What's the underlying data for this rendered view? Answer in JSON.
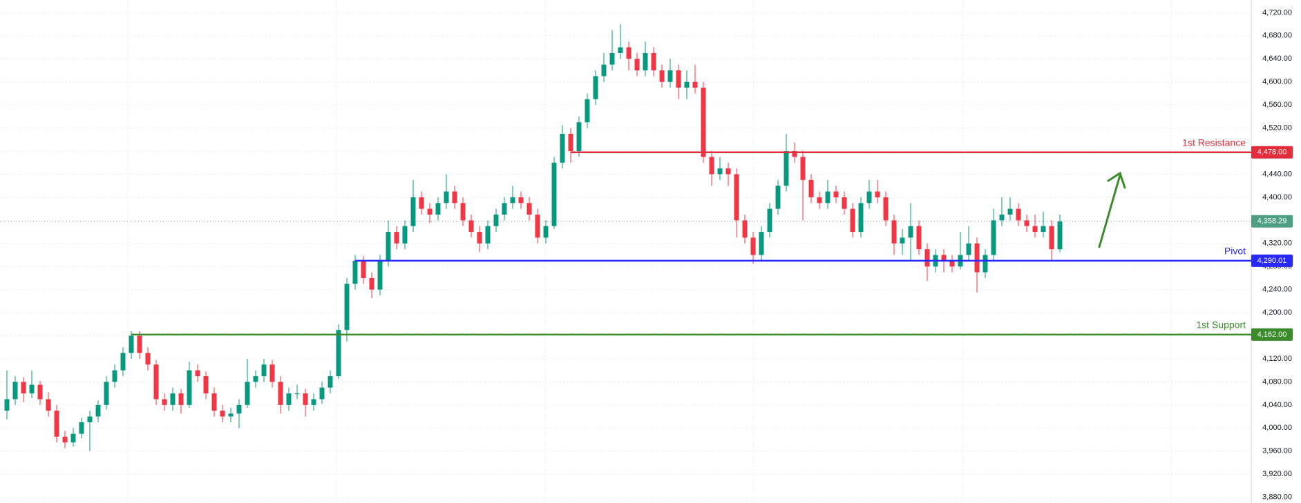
{
  "chart_data": {
    "type": "candlestick",
    "ylim": [
      3870,
      4742
    ],
    "yticks": [
      {
        "value": 3880,
        "label": "3,880.00"
      },
      {
        "value": 3920,
        "label": "3,920.00"
      },
      {
        "value": 3960,
        "label": "3,960.00"
      },
      {
        "value": 4000,
        "label": "4,000.00"
      },
      {
        "value": 4040,
        "label": "4,040.00"
      },
      {
        "value": 4080,
        "label": "4,080.00"
      },
      {
        "value": 4120,
        "label": "4,120.00"
      },
      {
        "value": 4160,
        "label": "4,160.00"
      },
      {
        "value": 4200,
        "label": "4,200.00"
      },
      {
        "value": 4240,
        "label": "4,240.00"
      },
      {
        "value": 4280,
        "label": "4,280.00"
      },
      {
        "value": 4320,
        "label": "4,320.00"
      },
      {
        "value": 4360,
        "label": "4,360.00"
      },
      {
        "value": 4400,
        "label": "4,400.00"
      },
      {
        "value": 4440,
        "label": "4,440.00"
      },
      {
        "value": 4480,
        "label": "4,480.00"
      },
      {
        "value": 4520,
        "label": "4,520.00"
      },
      {
        "value": 4560,
        "label": "4,560.00"
      },
      {
        "value": 4600,
        "label": "4,600.00"
      },
      {
        "value": 4640,
        "label": "4,640.00"
      },
      {
        "value": 4680,
        "label": "4,680.00"
      },
      {
        "value": 4720,
        "label": "4,720.00"
      }
    ],
    "grid": true,
    "up_color": "#089981",
    "down_color": "#f23645",
    "candles": [
      [
        4030,
        4100,
        4015,
        4050
      ],
      [
        4050,
        4090,
        4040,
        4080
      ],
      [
        4080,
        4088,
        4045,
        4060
      ],
      [
        4060,
        4100,
        4052,
        4075
      ],
      [
        4075,
        4082,
        4040,
        4050
      ],
      [
        4050,
        4062,
        4020,
        4030
      ],
      [
        4030,
        4040,
        3975,
        3985
      ],
      [
        3985,
        3995,
        3965,
        3975
      ],
      [
        3975,
        4000,
        3968,
        3990
      ],
      [
        3990,
        4018,
        3982,
        4010
      ],
      [
        4010,
        4030,
        3960,
        4020
      ],
      [
        4020,
        4048,
        4010,
        4040
      ],
      [
        4040,
        4090,
        4032,
        4080
      ],
      [
        4080,
        4110,
        4070,
        4100
      ],
      [
        4100,
        4140,
        4090,
        4130
      ],
      [
        4130,
        4168,
        4120,
        4160
      ],
      [
        4160,
        4168,
        4120,
        4130
      ],
      [
        4130,
        4140,
        4100,
        4110
      ],
      [
        4110,
        4118,
        4040,
        4050
      ],
      [
        4050,
        4060,
        4030,
        4040
      ],
      [
        4040,
        4070,
        4030,
        4060
      ],
      [
        4060,
        4068,
        4025,
        4040
      ],
      [
        4040,
        4115,
        4035,
        4100
      ],
      [
        4100,
        4110,
        4080,
        4090
      ],
      [
        4090,
        4098,
        4050,
        4060
      ],
      [
        4060,
        4070,
        4020,
        4030
      ],
      [
        4030,
        4040,
        4010,
        4020
      ],
      [
        4020,
        4035,
        4010,
        4025
      ],
      [
        4025,
        4050,
        4000,
        4040
      ],
      [
        4040,
        4120,
        4035,
        4080
      ],
      [
        4080,
        4100,
        4070,
        4090
      ],
      [
        4090,
        4120,
        4080,
        4110
      ],
      [
        4110,
        4118,
        4070,
        4080
      ],
      [
        4080,
        4090,
        4025,
        4040
      ],
      [
        4040,
        4070,
        4030,
        4060
      ],
      [
        4060,
        4075,
        4050,
        4060
      ],
      [
        4060,
        4068,
        4020,
        4040
      ],
      [
        4040,
        4060,
        4030,
        4050
      ],
      [
        4050,
        4080,
        4042,
        4070
      ],
      [
        4070,
        4100,
        4060,
        4090
      ],
      [
        4090,
        4180,
        4085,
        4170
      ],
      [
        4170,
        4260,
        4150,
        4250
      ],
      [
        4250,
        4300,
        4240,
        4290
      ],
      [
        4290,
        4298,
        4250,
        4260
      ],
      [
        4260,
        4270,
        4225,
        4240
      ],
      [
        4240,
        4300,
        4230,
        4290
      ],
      [
        4290,
        4360,
        4280,
        4340
      ],
      [
        4340,
        4350,
        4310,
        4320
      ],
      [
        4320,
        4360,
        4310,
        4350
      ],
      [
        4350,
        4430,
        4340,
        4400
      ],
      [
        4400,
        4410,
        4370,
        4380
      ],
      [
        4380,
        4390,
        4355,
        4370
      ],
      [
        4370,
        4400,
        4360,
        4390
      ],
      [
        4390,
        4440,
        4380,
        4410
      ],
      [
        4410,
        4420,
        4380,
        4390
      ],
      [
        4390,
        4400,
        4350,
        4360
      ],
      [
        4360,
        4370,
        4330,
        4340
      ],
      [
        4340,
        4350,
        4305,
        4320
      ],
      [
        4320,
        4360,
        4310,
        4350
      ],
      [
        4350,
        4380,
        4340,
        4370
      ],
      [
        4370,
        4400,
        4360,
        4390
      ],
      [
        4390,
        4420,
        4380,
        4400
      ],
      [
        4400,
        4410,
        4380,
        4390
      ],
      [
        4390,
        4400,
        4360,
        4370
      ],
      [
        4370,
        4380,
        4320,
        4330
      ],
      [
        4330,
        4360,
        4320,
        4350
      ],
      [
        4350,
        4470,
        4345,
        4460
      ],
      [
        4460,
        4525,
        4450,
        4510
      ],
      [
        4510,
        4520,
        4460,
        4480
      ],
      [
        4480,
        4540,
        4470,
        4530
      ],
      [
        4530,
        4580,
        4520,
        4570
      ],
      [
        4570,
        4620,
        4560,
        4610
      ],
      [
        4610,
        4650,
        4600,
        4630
      ],
      [
        4630,
        4690,
        4620,
        4650
      ],
      [
        4650,
        4700,
        4640,
        4660
      ],
      [
        4660,
        4670,
        4620,
        4640
      ],
      [
        4640,
        4650,
        4610,
        4620
      ],
      [
        4620,
        4670,
        4610,
        4650
      ],
      [
        4650,
        4660,
        4610,
        4620
      ],
      [
        4620,
        4630,
        4590,
        4600
      ],
      [
        4600,
        4640,
        4590,
        4620
      ],
      [
        4620,
        4630,
        4570,
        4590
      ],
      [
        4590,
        4620,
        4570,
        4600
      ],
      [
        4600,
        4630,
        4580,
        4590
      ],
      [
        4590,
        4600,
        4460,
        4470
      ],
      [
        4470,
        4480,
        4420,
        4440
      ],
      [
        4440,
        4470,
        4430,
        4450
      ],
      [
        4450,
        4460,
        4420,
        4440
      ],
      [
        4440,
        4450,
        4330,
        4360
      ],
      [
        4360,
        4370,
        4320,
        4330
      ],
      [
        4330,
        4340,
        4285,
        4300
      ],
      [
        4300,
        4350,
        4290,
        4340
      ],
      [
        4340,
        4390,
        4330,
        4380
      ],
      [
        4380,
        4430,
        4370,
        4420
      ],
      [
        4420,
        4510,
        4410,
        4480
      ],
      [
        4480,
        4495,
        4460,
        4470
      ],
      [
        4470,
        4480,
        4360,
        4430
      ],
      [
        4430,
        4440,
        4390,
        4400
      ],
      [
        4400,
        4410,
        4380,
        4390
      ],
      [
        4390,
        4430,
        4380,
        4410
      ],
      [
        4410,
        4420,
        4390,
        4400
      ],
      [
        4400,
        4410,
        4370,
        4380
      ],
      [
        4380,
        4390,
        4330,
        4340
      ],
      [
        4340,
        4400,
        4330,
        4390
      ],
      [
        4390,
        4430,
        4380,
        4410
      ],
      [
        4410,
        4430,
        4390,
        4400
      ],
      [
        4400,
        4410,
        4350,
        4360
      ],
      [
        4360,
        4370,
        4300,
        4320
      ],
      [
        4320,
        4345,
        4300,
        4330
      ],
      [
        4330,
        4390,
        4290,
        4350
      ],
      [
        4350,
        4360,
        4300,
        4310
      ],
      [
        4310,
        4320,
        4255,
        4280
      ],
      [
        4280,
        4310,
        4270,
        4300
      ],
      [
        4300,
        4310,
        4270,
        4290
      ],
      [
        4290,
        4300,
        4270,
        4280
      ],
      [
        4280,
        4340,
        4275,
        4300
      ],
      [
        4300,
        4350,
        4290,
        4320
      ],
      [
        4320,
        4330,
        4235,
        4270
      ],
      [
        4270,
        4310,
        4260,
        4300
      ],
      [
        4300,
        4380,
        4290,
        4360
      ],
      [
        4360,
        4400,
        4350,
        4370
      ],
      [
        4370,
        4400,
        4360,
        4380
      ],
      [
        4380,
        4390,
        4350,
        4360
      ],
      [
        4360,
        4370,
        4340,
        4350
      ],
      [
        4350,
        4370,
        4330,
        4340
      ],
      [
        4340,
        4375,
        4330,
        4350
      ],
      [
        4350,
        4360,
        4290,
        4310
      ],
      [
        4310,
        4370,
        4305,
        4358.29
      ]
    ],
    "last": {
      "value": 4358.29,
      "label": "4,358.29",
      "color": "#4d9e83"
    },
    "levels": [
      {
        "name": "1st Resistance",
        "value": 4478,
        "label": "4,478.00",
        "color": "#e12d3c",
        "from": 68
      },
      {
        "name": "Pivot",
        "value": 4290.01,
        "label": "4,290.01",
        "color": "#2929ff",
        "from": 42
      },
      {
        "name": "1st Support",
        "value": 4162,
        "label": "4,162.00",
        "color": "#3b8a2c",
        "from": 15
      }
    ]
  }
}
